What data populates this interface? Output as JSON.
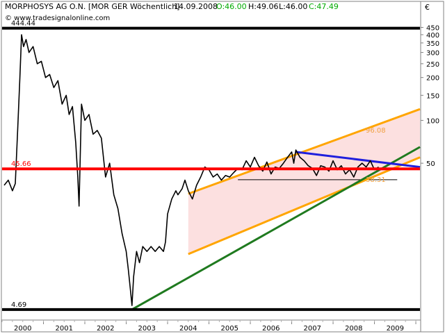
{
  "header": {
    "instrument": "MORPHOSYS AG O.N. [MOR GER  Wöchentlich]",
    "date": "14.09.2008",
    "open": "O:46.00",
    "high": "H:49.06",
    "low": "L:46.00",
    "close": "C:47.49",
    "currency": "€",
    "website": "© www.tradesignalonline.com"
  },
  "colors": {
    "price": "#000000",
    "open_green": "#00aa00",
    "close_green": "#00aa00",
    "support_resistance_black": "#000000",
    "horizontal_red": "#ff0000",
    "channel_orange": "#ffa500",
    "channel_fill": "#fbd5d5",
    "trend_green": "#1f7a1f",
    "triangle_blue": "#1f1fdd",
    "level_label_orange": "#f0a040"
  },
  "chart_data": {
    "type": "line",
    "title": "MORPHOSYS AG O.N. [MOR GER  Wöchentlich]",
    "y_scale": "log",
    "ylim": [
      4.0,
      560
    ],
    "x_range": [
      1999.5,
      2009.6
    ],
    "x_ticks": [
      "2000",
      "2001",
      "2002",
      "2003",
      "2004",
      "2005",
      "2006",
      "2007",
      "2008",
      "2009"
    ],
    "y_ticks": [
      450,
      400,
      350,
      300,
      250,
      200,
      150,
      100,
      50
    ],
    "series": [
      {
        "name": "MORPHOSYS AG O.N.",
        "points": [
          [
            1999.55,
            35
          ],
          [
            1999.65,
            38
          ],
          [
            1999.75,
            32
          ],
          [
            1999.82,
            36
          ],
          [
            1999.88,
            90
          ],
          [
            1999.93,
            200
          ],
          [
            1999.97,
            400
          ],
          [
            2000.02,
            330
          ],
          [
            2000.08,
            370
          ],
          [
            2000.15,
            300
          ],
          [
            2000.25,
            330
          ],
          [
            2000.35,
            250
          ],
          [
            2000.45,
            260
          ],
          [
            2000.55,
            200
          ],
          [
            2000.65,
            210
          ],
          [
            2000.75,
            170
          ],
          [
            2000.85,
            190
          ],
          [
            2000.95,
            130
          ],
          [
            2001.05,
            150
          ],
          [
            2001.12,
            110
          ],
          [
            2001.2,
            125
          ],
          [
            2001.28,
            70
          ],
          [
            2001.33,
            40
          ],
          [
            2001.36,
            25
          ],
          [
            2001.42,
            130
          ],
          [
            2001.5,
            100
          ],
          [
            2001.6,
            110
          ],
          [
            2001.7,
            80
          ],
          [
            2001.8,
            85
          ],
          [
            2001.9,
            75
          ],
          [
            2002.0,
            40
          ],
          [
            2002.1,
            50
          ],
          [
            2002.2,
            30
          ],
          [
            2002.3,
            24
          ],
          [
            2002.4,
            16
          ],
          [
            2002.5,
            12
          ],
          [
            2002.55,
            9
          ],
          [
            2002.6,
            6.5
          ],
          [
            2002.64,
            5.0
          ],
          [
            2002.68,
            8
          ],
          [
            2002.75,
            12
          ],
          [
            2002.82,
            10
          ],
          [
            2002.9,
            13
          ],
          [
            2003.0,
            12
          ],
          [
            2003.1,
            13
          ],
          [
            2003.2,
            12
          ],
          [
            2003.3,
            13
          ],
          [
            2003.4,
            12
          ],
          [
            2003.45,
            14
          ],
          [
            2003.5,
            22
          ],
          [
            2003.6,
            28
          ],
          [
            2003.7,
            32
          ],
          [
            2003.75,
            30
          ],
          [
            2003.85,
            33
          ],
          [
            2003.92,
            38
          ],
          [
            2004.0,
            32
          ],
          [
            2004.1,
            28
          ],
          [
            2004.2,
            35
          ],
          [
            2004.3,
            40
          ],
          [
            2004.4,
            47
          ],
          [
            2004.5,
            45
          ],
          [
            2004.6,
            40
          ],
          [
            2004.7,
            42
          ],
          [
            2004.8,
            38
          ],
          [
            2004.9,
            41
          ],
          [
            2005.0,
            40
          ],
          [
            2005.1,
            43
          ],
          [
            2005.2,
            46
          ],
          [
            2005.3,
            45
          ],
          [
            2005.4,
            52
          ],
          [
            2005.5,
            47
          ],
          [
            2005.6,
            55
          ],
          [
            2005.7,
            48
          ],
          [
            2005.8,
            44
          ],
          [
            2005.9,
            51
          ],
          [
            2006.0,
            42
          ],
          [
            2006.1,
            47
          ],
          [
            2006.2,
            46
          ],
          [
            2006.3,
            50
          ],
          [
            2006.4,
            55
          ],
          [
            2006.5,
            60
          ],
          [
            2006.55,
            50
          ],
          [
            2006.6,
            62
          ],
          [
            2006.7,
            55
          ],
          [
            2006.8,
            52
          ],
          [
            2006.9,
            48
          ],
          [
            2007.0,
            46
          ],
          [
            2007.1,
            41
          ],
          [
            2007.2,
            48
          ],
          [
            2007.3,
            47
          ],
          [
            2007.4,
            44
          ],
          [
            2007.5,
            52
          ],
          [
            2007.6,
            45
          ],
          [
            2007.7,
            48
          ],
          [
            2007.8,
            42
          ],
          [
            2007.9,
            45
          ],
          [
            2008.0,
            40
          ],
          [
            2008.1,
            47
          ],
          [
            2008.2,
            50
          ],
          [
            2008.3,
            47
          ],
          [
            2008.4,
            52
          ],
          [
            2008.5,
            45
          ],
          [
            2008.6,
            47
          ]
        ]
      }
    ],
    "horizontal_levels": [
      {
        "label": "444.44",
        "value": 444.44,
        "color": "black"
      },
      {
        "label": "45.66",
        "value": 45.66,
        "color": "red"
      },
      {
        "label": "4.69",
        "value": 4.69,
        "color": "black"
      }
    ],
    "channel": {
      "upper": [
        [
          2004.0,
          30.5
        ],
        [
          2009.6,
          120
        ]
      ],
      "lower": [
        [
          2004.0,
          11.5
        ],
        [
          2009.6,
          55
        ]
      ],
      "label_upper": "96.08",
      "label_lower": "38.31"
    },
    "trendline_green": [
      [
        2002.64,
        4.69
      ],
      [
        2009.6,
        65
      ]
    ],
    "triangle_blue": [
      [
        2006.6,
        60
      ],
      [
        2009.6,
        47
      ]
    ],
    "thin_support": [
      [
        2005.2,
        38.31
      ],
      [
        2009.05,
        38.31
      ]
    ],
    "legend": "none",
    "grid": false
  }
}
